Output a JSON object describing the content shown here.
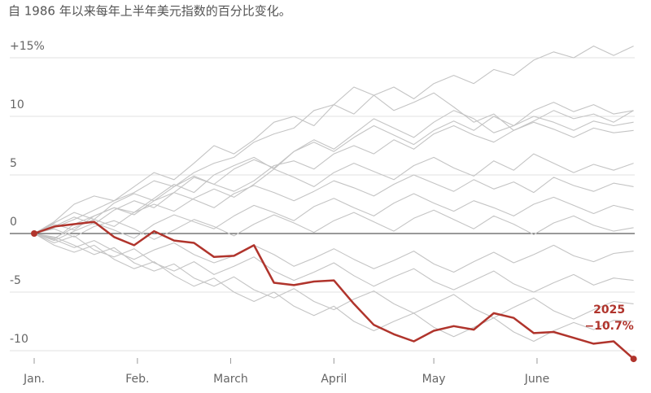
{
  "chart_data": {
    "type": "line",
    "subtitle": "自 1986 年以来每年上半年美元指数的百分比变化。",
    "x": [
      0,
      6,
      12,
      18,
      24,
      30,
      36,
      42,
      48,
      54,
      60,
      66,
      72,
      78,
      84,
      90,
      96,
      102,
      108,
      114,
      120,
      126,
      132,
      138,
      144,
      150,
      156,
      162,
      168,
      174,
      180
    ],
    "xlim": [
      -6.6,
      184
    ],
    "xticks": [
      {
        "value": 0,
        "label": "Jan."
      },
      {
        "value": 31,
        "label": "Feb."
      },
      {
        "value": 59,
        "label": "March"
      },
      {
        "value": 90,
        "label": "April"
      },
      {
        "value": 120,
        "label": "May"
      },
      {
        "value": 151,
        "label": "June"
      }
    ],
    "ylim": [
      -11,
      16.5
    ],
    "yticks": [
      -10,
      -5,
      0,
      5,
      10,
      {
        "value": 15,
        "label": "+15%"
      }
    ],
    "grid": true,
    "series": [
      {
        "color": "#c4c4c4",
        "values": [
          0,
          0.5,
          1.2,
          2,
          2.8,
          3.5,
          4.5,
          4,
          5.2,
          6,
          6.5,
          7.8,
          8.5,
          9,
          10.5,
          11,
          10.2,
          11.8,
          12.5,
          11.5,
          12.8,
          13.5,
          12.8,
          14,
          13.5,
          14.8,
          15.5,
          15,
          16,
          15.2,
          16
        ]
      },
      {
        "color": "#c4c4c4",
        "values": [
          0,
          1,
          2.5,
          3.2,
          2.8,
          4,
          5.2,
          4.6,
          6,
          7.5,
          6.8,
          8,
          9.5,
          10,
          9.2,
          11,
          12.5,
          11.8,
          10.5,
          11.2,
          12,
          10.8,
          9.5,
          10.2,
          8.8,
          9.6,
          10.5,
          9.8,
          10.2,
          9.5,
          10.5
        ]
      },
      {
        "color": "#c4c4c4",
        "values": [
          0,
          -0.5,
          0.8,
          1.5,
          2.2,
          1.8,
          3,
          4.2,
          3.5,
          5,
          5.8,
          6.5,
          5.5,
          7,
          8,
          7.2,
          8.5,
          9.8,
          9,
          8.2,
          9.5,
          10.5,
          9.8,
          8.6,
          9.2,
          10,
          9.5,
          8.8,
          9.6,
          9.2,
          9.5
        ]
      },
      {
        "color": "#c4c4c4",
        "values": [
          0,
          0.6,
          1.4,
          0.8,
          2,
          2.8,
          2.2,
          3.5,
          4.8,
          4.2,
          3.6,
          4.5,
          5.8,
          6.2,
          5.5,
          6.8,
          7.5,
          6.8,
          8,
          7.2,
          8.5,
          9.2,
          8.4,
          7.8,
          8.8,
          9.5,
          8.9,
          8.2,
          9,
          8.6,
          8.8
        ]
      },
      {
        "color": "#c4c4c4",
        "values": [
          0,
          -0.4,
          0.5,
          1.2,
          0.6,
          1.8,
          2.5,
          1.9,
          3,
          3.8,
          3.1,
          4.2,
          5.5,
          4.8,
          4,
          5.2,
          6,
          5.3,
          4.6,
          5.8,
          6.5,
          5.6,
          4.9,
          6.2,
          5.4,
          6.8,
          6,
          5.2,
          5.9,
          5.4,
          6
        ]
      },
      {
        "color": "#c4c4c4",
        "values": [
          0,
          0.8,
          0.3,
          1.5,
          2.2,
          1.6,
          2.8,
          3.5,
          2.9,
          2.2,
          3.4,
          4.1,
          3.5,
          2.8,
          3.6,
          4.5,
          3.9,
          3.2,
          4.2,
          5,
          4.3,
          3.6,
          4.6,
          3.8,
          4.4,
          3.5,
          4.8,
          4.1,
          3.6,
          4.3,
          4
        ]
      },
      {
        "color": "#c4c4c4",
        "values": [
          0,
          -0.6,
          0.2,
          0.9,
          0.3,
          -0.4,
          0.8,
          1.6,
          1,
          0.4,
          1.5,
          2.4,
          1.8,
          1.1,
          2.3,
          3,
          2.2,
          1.5,
          2.6,
          3.4,
          2.6,
          1.9,
          2.8,
          2.2,
          1.5,
          2.5,
          3.1,
          2.4,
          1.7,
          2.4,
          2
        ]
      },
      {
        "color": "#c4c4c4",
        "values": [
          0,
          0.4,
          -0.3,
          0.6,
          1.1,
          0.4,
          -0.5,
          0.3,
          1.2,
          0.6,
          -0.2,
          0.8,
          1.6,
          0.9,
          0.1,
          1.1,
          1.8,
          1,
          0.2,
          1.3,
          2,
          1.2,
          0.4,
          1.5,
          0.8,
          -0.1,
          0.9,
          1.5,
          0.7,
          0.2,
          0.5
        ]
      },
      {
        "color": "#c4c4c4",
        "values": [
          0,
          -0.5,
          -1.2,
          -0.6,
          -1.5,
          -2.2,
          -1.4,
          -0.8,
          -1.8,
          -2.5,
          -1.9,
          -1,
          -1.8,
          -2.8,
          -2.1,
          -1.3,
          -2.2,
          -3,
          -2.3,
          -1.5,
          -2.6,
          -3.3,
          -2.4,
          -1.6,
          -2.5,
          -1.8,
          -1,
          -1.9,
          -2.4,
          -1.7,
          -1.5
        ]
      },
      {
        "color": "#c4c4c4",
        "values": [
          0,
          -0.8,
          -0.2,
          -1.4,
          -2,
          -1.3,
          -2.5,
          -3.2,
          -2.4,
          -3.5,
          -2.8,
          -2,
          -3.2,
          -4,
          -3.3,
          -2.5,
          -3.6,
          -4.5,
          -3.7,
          -3,
          -4.1,
          -4.8,
          -4,
          -3.2,
          -4.3,
          -5,
          -4.2,
          -3.5,
          -4.4,
          -3.8,
          -4
        ]
      },
      {
        "color": "#c4c4c4",
        "values": [
          0,
          -0.3,
          -1,
          -1.8,
          -1.2,
          -2.5,
          -3.2,
          -2.6,
          -3.8,
          -4.5,
          -3.7,
          -4.8,
          -5.5,
          -4.7,
          -5.8,
          -6.5,
          -5.6,
          -4.9,
          -6,
          -6.8,
          -6,
          -5.2,
          -6.4,
          -7.2,
          -6.3,
          -5.5,
          -6.6,
          -7.3,
          -6.5,
          -5.8,
          -6
        ]
      },
      {
        "color": "#c4c4c4",
        "values": [
          0,
          -1,
          -1.6,
          -1,
          -2.2,
          -3,
          -2.4,
          -3.6,
          -4.5,
          -3.8,
          -5,
          -5.8,
          -5,
          -6.2,
          -7,
          -6.2,
          -7.5,
          -8.3,
          -7.5,
          -6.8,
          -8,
          -8.8,
          -8,
          -7.2,
          -8.4,
          -9.2,
          -8.3,
          -7.6,
          -8.2,
          -7.4,
          -7.5
        ]
      },
      {
        "color": "#c4c4c4",
        "values": [
          0,
          0.9,
          1.8,
          1.2,
          2.6,
          3.4,
          2.8,
          4,
          4.9,
          4.2,
          5.5,
          6.3,
          5.6,
          7,
          7.8,
          7,
          8.2,
          9.2,
          8.4,
          7.6,
          8.8,
          9.6,
          8.8,
          10,
          9.2,
          10.5,
          11.2,
          10.4,
          11,
          10.2,
          10.5
        ]
      },
      {
        "name": "2025",
        "color": "#b0342c",
        "values": [
          0,
          0.6,
          0.8,
          1.0,
          -0.3,
          -1.0,
          0.2,
          -0.6,
          -0.8,
          -2.0,
          -1.9,
          -1.0,
          -4.2,
          -4.4,
          -4.1,
          -4.0,
          -6.0,
          -7.8,
          -8.6,
          -9.2,
          -8.3,
          -7.9,
          -8.2,
          -6.8,
          -7.2,
          -8.5,
          -8.4,
          -8.9,
          -9.4,
          -9.2,
          -10.7
        ],
        "value_labels": [
          null,
          null,
          null,
          null,
          null,
          null,
          null,
          null,
          null,
          null,
          null,
          null,
          null,
          null,
          null,
          null,
          null,
          null,
          null,
          null,
          null,
          null,
          null,
          null,
          null,
          null,
          null,
          null,
          null,
          null,
          "−10.7%"
        ]
      }
    ]
  }
}
